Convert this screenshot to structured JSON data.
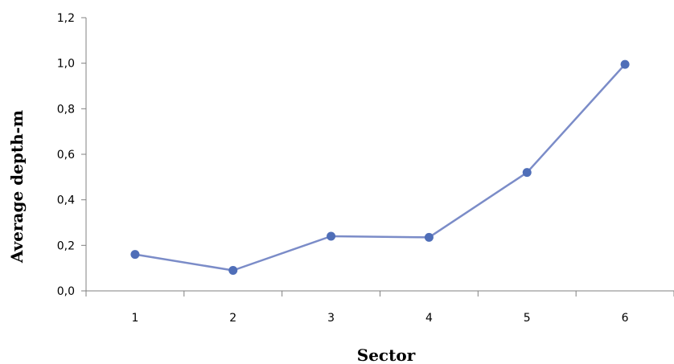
{
  "chart_data": {
    "type": "line",
    "title": "",
    "xlabel": "Sector",
    "ylabel": "Average depth-m",
    "categories": [
      "1",
      "2",
      "3",
      "4",
      "5",
      "6"
    ],
    "series": [
      {
        "values": [
          0.16,
          0.09,
          0.24,
          0.235,
          0.52,
          0.995
        ]
      }
    ],
    "ylim": [
      0,
      1.2
    ],
    "yticks": [
      "0,0",
      "0,2",
      "0,4",
      "0,6",
      "0,8",
      "1,0",
      "1,2"
    ],
    "grid": false,
    "legend": "none",
    "colors": {
      "line": "#7B8CC8",
      "marker": "#4F6EB8",
      "axis": "#808080"
    }
  }
}
